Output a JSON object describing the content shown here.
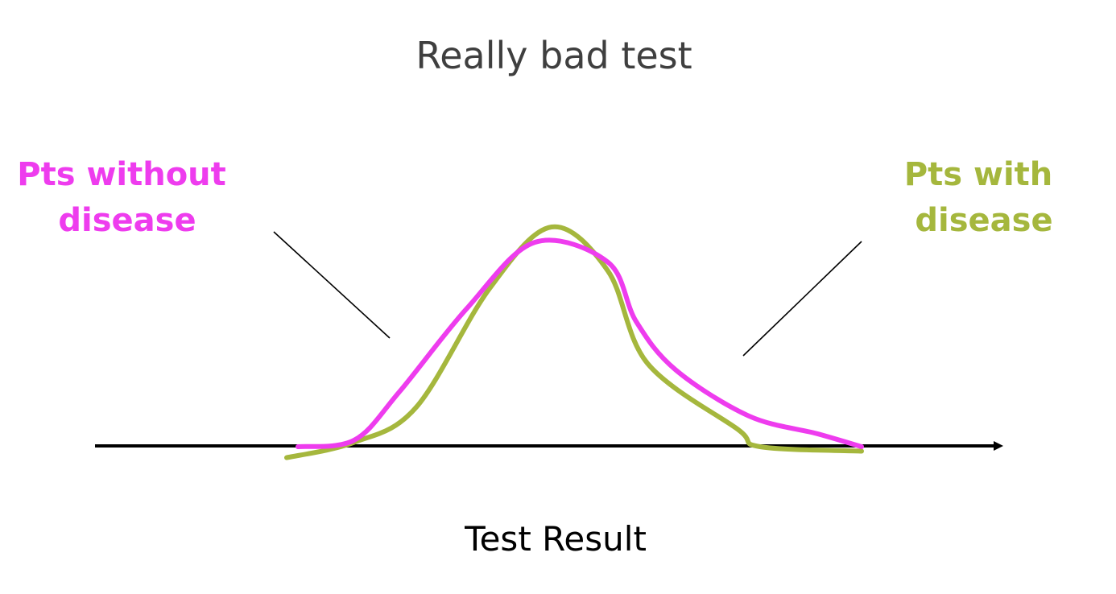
{
  "chart_data": {
    "type": "line",
    "title": "Really bad test",
    "xlabel": "Test Result",
    "ylabel": "",
    "xlim": [
      0,
      1
    ],
    "ylim": [
      0,
      1
    ],
    "grid": false,
    "series": [
      {
        "name_lines": [
          "Pts without",
          "disease"
        ],
        "color": "#ee3cee",
        "x": [
          0.0,
          0.1,
          0.18,
          0.3,
          0.42,
          0.55,
          0.6,
          0.67,
          0.8,
          0.92,
          1.0
        ],
        "y": [
          0.0,
          0.03,
          0.25,
          0.63,
          0.93,
          0.84,
          0.57,
          0.35,
          0.14,
          0.06,
          0.0
        ]
      },
      {
        "name_lines": [
          "Pts with",
          "disease"
        ],
        "color": "#a5b73d",
        "x": [
          -0.02,
          0.1,
          0.21,
          0.34,
          0.45,
          0.55,
          0.62,
          0.78,
          0.82,
          1.0
        ],
        "y": [
          -0.05,
          0.02,
          0.18,
          0.72,
          1.0,
          0.8,
          0.38,
          0.08,
          0.0,
          -0.02
        ]
      }
    ]
  }
}
